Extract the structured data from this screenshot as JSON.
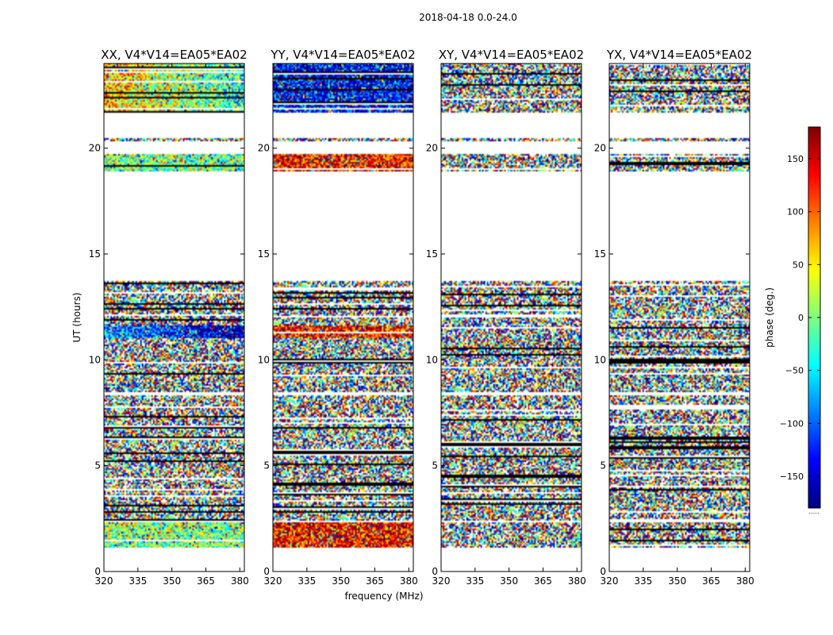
{
  "figure": {
    "suptitle": "2018-04-18 0.0-24.0",
    "xlabel": "frequency (MHz)",
    "ylabel": "UT (hours)"
  },
  "colorbar": {
    "label": "phase (deg.)",
    "range": [
      -180,
      180
    ],
    "ticks": [
      -150,
      -100,
      -50,
      0,
      50,
      100,
      150
    ],
    "tick_labels": [
      "−150",
      "−100",
      "−50",
      "0",
      "50",
      "100",
      "150"
    ],
    "colormap": "jet",
    "colors": [
      "#00007f",
      "#0000ff",
      "#00ffff",
      "#7fff7f",
      "#ffff00",
      "#ff0000",
      "#7f0000"
    ],
    "footer_mark": "....."
  },
  "chart_data": [
    {
      "type": "heatmap",
      "title": "XX, V4*V14=EA05*EA02",
      "xlabel": "",
      "ylabel": "UT (hours)",
      "xlim": [
        320,
        382
      ],
      "ylim": [
        0,
        24
      ],
      "xticks": [
        320,
        335,
        350,
        365,
        380
      ],
      "yticks": [
        0,
        5,
        10,
        15,
        20
      ],
      "value_range": [
        -180,
        180
      ],
      "data_bands": [
        [
          1.1,
          2.3,
          "green"
        ],
        [
          2.4,
          8.3,
          "noisy"
        ],
        [
          8.5,
          13.7,
          "noisy"
        ],
        [
          11.0,
          11.6,
          "cyan-blue"
        ],
        [
          18.9,
          19.7,
          "cyan-yellow"
        ],
        [
          20.3,
          20.5,
          "noisy"
        ],
        [
          21.7,
          24.0,
          "red-yellow-cyan"
        ]
      ],
      "empty_gaps": [
        [
          13.7,
          18.9
        ],
        [
          19.7,
          20.3
        ],
        [
          20.5,
          21.7
        ]
      ]
    },
    {
      "type": "heatmap",
      "title": "YY, V4*V14=EA05*EA02",
      "xlabel": "frequency (MHz)",
      "ylabel": "",
      "xlim": [
        320,
        382
      ],
      "ylim": [
        0,
        24
      ],
      "xticks": [
        320,
        335,
        350,
        365,
        380
      ],
      "yticks": [
        0,
        5,
        10,
        15,
        20
      ],
      "value_range": [
        -180,
        180
      ],
      "data_bands": [
        [
          1.1,
          2.3,
          "red"
        ],
        [
          2.4,
          8.3,
          "noisy"
        ],
        [
          8.5,
          13.7,
          "noisy"
        ],
        [
          11.0,
          11.6,
          "red"
        ],
        [
          18.9,
          19.7,
          "red"
        ],
        [
          20.3,
          20.5,
          "noisy"
        ],
        [
          21.7,
          24.0,
          "blue"
        ]
      ],
      "empty_gaps": [
        [
          13.7,
          18.9
        ],
        [
          19.7,
          20.3
        ],
        [
          20.5,
          21.7
        ]
      ]
    },
    {
      "type": "heatmap",
      "title": "XY, V4*V14=EA05*EA02",
      "xlabel": "",
      "ylabel": "",
      "xlim": [
        320,
        382
      ],
      "ylim": [
        0,
        24
      ],
      "xticks": [
        320,
        335,
        350,
        365,
        380
      ],
      "yticks": [
        0,
        5,
        10,
        15,
        20
      ],
      "value_range": [
        -180,
        180
      ],
      "data_bands": [
        [
          1.1,
          2.3,
          "noisy"
        ],
        [
          2.4,
          8.3,
          "noisy"
        ],
        [
          8.5,
          13.7,
          "noisy"
        ],
        [
          18.9,
          19.7,
          "noisy"
        ],
        [
          20.3,
          20.5,
          "noisy"
        ],
        [
          21.7,
          24.0,
          "noisy"
        ]
      ],
      "empty_gaps": [
        [
          13.7,
          18.9
        ],
        [
          19.7,
          20.3
        ],
        [
          20.5,
          21.7
        ]
      ]
    },
    {
      "type": "heatmap",
      "title": "YX, V4*V14=EA05*EA02",
      "xlabel": "",
      "ylabel": "",
      "xlim": [
        320,
        382
      ],
      "ylim": [
        0,
        24
      ],
      "xticks": [
        320,
        335,
        350,
        365,
        380
      ],
      "yticks": [
        0,
        5,
        10,
        15,
        20
      ],
      "value_range": [
        -180,
        180
      ],
      "data_bands": [
        [
          1.1,
          2.3,
          "noisy"
        ],
        [
          2.4,
          8.3,
          "noisy"
        ],
        [
          8.5,
          13.7,
          "noisy"
        ],
        [
          18.9,
          19.7,
          "noisy"
        ],
        [
          20.3,
          20.5,
          "noisy"
        ],
        [
          21.7,
          24.0,
          "noisy"
        ]
      ],
      "empty_gaps": [
        [
          13.7,
          18.9
        ],
        [
          19.7,
          20.3
        ],
        [
          20.5,
          21.7
        ]
      ]
    }
  ]
}
